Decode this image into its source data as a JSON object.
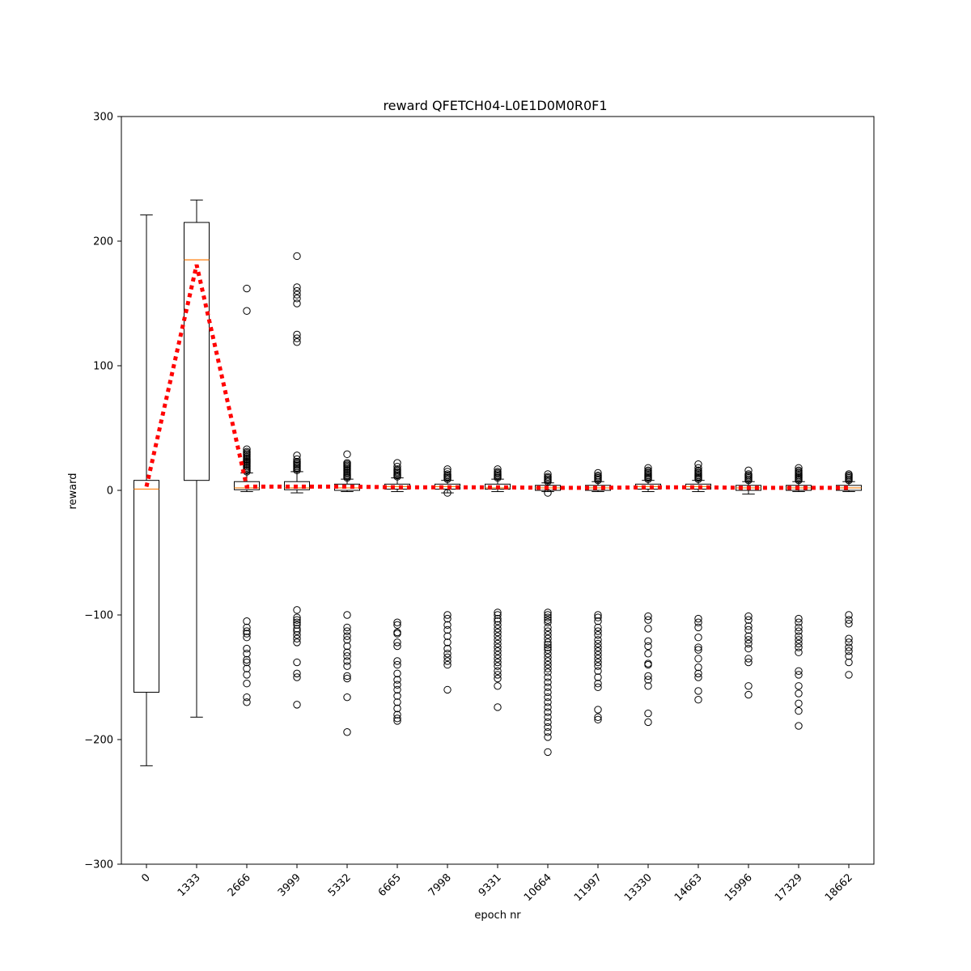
{
  "chart_data": {
    "type": "box",
    "title": "reward QFETCH04-L0E1D0M0R0F1",
    "xlabel": "epoch nr",
    "ylabel": "reward",
    "ylim": [
      -300,
      300
    ],
    "yticks": [
      -300,
      -200,
      -100,
      0,
      100,
      200,
      300
    ],
    "categories": [
      "0",
      "1333",
      "2666",
      "3999",
      "5332",
      "6665",
      "7998",
      "9331",
      "10664",
      "11997",
      "13330",
      "14663",
      "15996",
      "17329",
      "18662"
    ],
    "grid": false,
    "colors": {
      "box": "#000000",
      "median": "#ff7f0e",
      "mean_line": "#ff0000",
      "flier": "#000000"
    },
    "boxes": [
      {
        "q1": -162,
        "median": 1,
        "q3": 8,
        "whisker_low": -221,
        "whisker_high": 221,
        "fliers": []
      },
      {
        "q1": 8,
        "median": 185,
        "q3": 215,
        "whisker_low": -182,
        "whisker_high": 233,
        "fliers": []
      },
      {
        "q1": 0.5,
        "median": 2,
        "q3": 7,
        "whisker_low": -1,
        "whisker_high": 14,
        "fliers": [
          162,
          144,
          33,
          31,
          30,
          29,
          28,
          27,
          26,
          25,
          24,
          23,
          22,
          21,
          20,
          19,
          18,
          17,
          16,
          15,
          -105,
          -110,
          -113,
          -115,
          -118,
          -127,
          -131,
          -136,
          -138,
          -143,
          -148,
          -155,
          -166,
          -170
        ]
      },
      {
        "q1": 0.5,
        "median": 2,
        "q3": 7,
        "whisker_low": -2,
        "whisker_high": 15,
        "fliers": [
          188,
          163,
          160,
          157,
          154,
          150,
          125,
          122,
          119,
          28,
          25,
          23,
          22,
          21,
          20,
          19,
          18,
          17,
          16,
          -96,
          -102,
          -104,
          -106,
          -108,
          -111,
          -113,
          -116,
          -119,
          -122,
          -138,
          -147,
          -150,
          -172
        ]
      },
      {
        "q1": 0,
        "median": 2,
        "q3": 5,
        "whisker_low": -1,
        "whisker_high": 9,
        "fliers": [
          29,
          22,
          21,
          20,
          19,
          18,
          17,
          16,
          15,
          14,
          13,
          12,
          11,
          10,
          -100,
          -110,
          -113,
          -117,
          -120,
          -125,
          -130,
          -133,
          -137,
          -141,
          -149,
          -151,
          -166,
          -194
        ]
      },
      {
        "q1": 1,
        "median": 3,
        "q3": 5,
        "whisker_low": -1,
        "whisker_high": 10,
        "fliers": [
          22,
          19,
          17,
          16,
          15,
          14,
          13,
          12,
          11,
          -106,
          -108,
          -114,
          -115,
          -122,
          -125,
          -137,
          -140,
          -147,
          -152,
          -156,
          -160,
          -165,
          -170,
          -175,
          -180,
          -183,
          -185
        ]
      },
      {
        "q1": 1,
        "median": 3,
        "q3": 5,
        "whisker_low": -2,
        "whisker_high": 8,
        "fliers": [
          17,
          15,
          13,
          12,
          11,
          10,
          9,
          -2,
          -100,
          -103,
          -108,
          -112,
          -117,
          -122,
          -127,
          -131,
          -134,
          -137,
          -140,
          -160
        ]
      },
      {
        "q1": 1,
        "median": 2,
        "q3": 5,
        "whisker_low": -1,
        "whisker_high": 9,
        "fliers": [
          17,
          15,
          14,
          13,
          12,
          11,
          10,
          -98,
          -100,
          -103,
          -105,
          -108,
          -111,
          -114,
          -117,
          -120,
          -123,
          -126,
          -129,
          -132,
          -135,
          -138,
          -141,
          -145,
          -148,
          -151,
          -157,
          -174
        ]
      },
      {
        "q1": 0,
        "median": 2,
        "q3": 4,
        "whisker_low": -1,
        "whisker_high": 6,
        "fliers": [
          13,
          11,
          10,
          9,
          8,
          7,
          -2,
          -98,
          -100,
          -102,
          -104,
          -106,
          -110,
          -113,
          -116,
          -119,
          -122,
          -124,
          -126,
          -128,
          -131,
          -134,
          -137,
          -140,
          -143,
          -146,
          -150,
          -154,
          -158,
          -162,
          -166,
          -170,
          -174,
          -178,
          -182,
          -186,
          -190,
          -194,
          -198,
          -210
        ]
      },
      {
        "q1": 0,
        "median": 2,
        "q3": 4,
        "whisker_low": -1,
        "whisker_high": 7,
        "fliers": [
          14,
          12,
          11,
          10,
          9,
          8,
          -100,
          -102,
          -105,
          -110,
          -113,
          -116,
          -120,
          -123,
          -126,
          -129,
          -132,
          -135,
          -138,
          -141,
          -145,
          -150,
          -155,
          -158,
          -176,
          -182,
          -184
        ]
      },
      {
        "q1": 1,
        "median": 3,
        "q3": 5,
        "whisker_low": -1,
        "whisker_high": 8,
        "fliers": [
          18,
          16,
          15,
          14,
          13,
          12,
          11,
          10,
          9,
          -101,
          -104,
          -111,
          -121,
          -125,
          -131,
          -139,
          -140,
          -149,
          -152,
          -157,
          -179,
          -186
        ]
      },
      {
        "q1": 1,
        "median": 3,
        "q3": 5,
        "whisker_low": -1,
        "whisker_high": 8,
        "fliers": [
          21,
          18,
          16,
          15,
          14,
          13,
          12,
          11,
          10,
          9,
          -103,
          -106,
          -110,
          -118,
          -126,
          -128,
          -135,
          -142,
          -147,
          -150,
          -161,
          -168
        ]
      },
      {
        "q1": 0,
        "median": 2,
        "q3": 4,
        "whisker_low": -3,
        "whisker_high": 7,
        "fliers": [
          16,
          13,
          12,
          11,
          10,
          9,
          8,
          -101,
          -104,
          -109,
          -112,
          -117,
          -120,
          -123,
          -127,
          -135,
          -138,
          -157,
          -164
        ]
      },
      {
        "q1": 0,
        "median": 2,
        "q3": 4,
        "whisker_low": -1,
        "whisker_high": 7,
        "fliers": [
          18,
          16,
          15,
          14,
          13,
          12,
          11,
          10,
          9,
          8,
          -103,
          -106,
          -110,
          -113,
          -117,
          -120,
          -123,
          -126,
          -130,
          -145,
          -148,
          -157,
          -163,
          -171,
          -177,
          -189
        ]
      },
      {
        "q1": 0,
        "median": 2,
        "q3": 4,
        "whisker_low": -1,
        "whisker_high": 7,
        "fliers": [
          13,
          12,
          11,
          10,
          9,
          8,
          -100,
          -104,
          -107,
          -119,
          -122,
          -126,
          -129,
          -133,
          -138,
          -148
        ]
      }
    ],
    "mean_line": {
      "style": "dotted",
      "values": [
        3,
        181,
        3,
        3,
        3,
        2.5,
        2.5,
        2.5,
        2,
        2,
        2.5,
        2.5,
        2,
        2,
        2
      ]
    }
  }
}
